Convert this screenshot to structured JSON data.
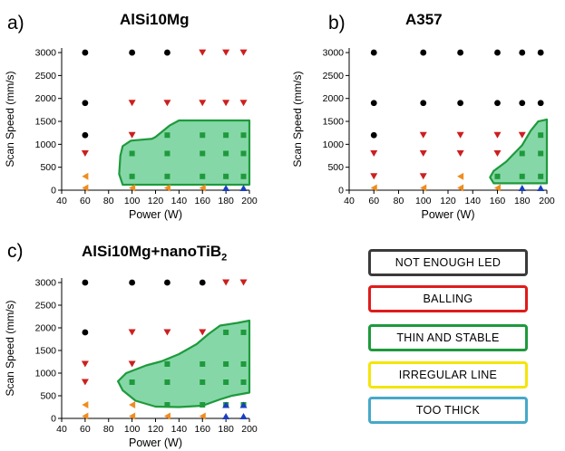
{
  "colors": {
    "not_enough_led": "#000000",
    "balling": "#cc1f1f",
    "thin_and_stable": "#1e9a3c",
    "thin_fill": "#5ec98a",
    "irregular_line": "#f08c1e",
    "too_thick": "#1a3fbf"
  },
  "chart_data": [
    {
      "type": "scatter",
      "panel_label": "a)",
      "title": "AlSi10Mg",
      "xlabel": "Power (W)",
      "ylabel": "Scan Speed (mm/s)",
      "xlim": [
        40,
        200
      ],
      "ylim": [
        0,
        3100
      ],
      "xticks": [
        40,
        60,
        80,
        100,
        120,
        140,
        160,
        180,
        200
      ],
      "yticks": [
        0,
        500,
        1000,
        1500,
        2000,
        2500,
        3000
      ],
      "series": [
        {
          "category": "not_enough_led",
          "marker": "circle",
          "points": [
            [
              60,
              3000
            ],
            [
              100,
              3000
            ],
            [
              130,
              3000
            ],
            [
              60,
              1900
            ],
            [
              60,
              1200
            ]
          ]
        },
        {
          "category": "balling",
          "marker": "triangle-down",
          "points": [
            [
              160,
              3000
            ],
            [
              180,
              3000
            ],
            [
              195,
              3000
            ],
            [
              100,
              1900
            ],
            [
              130,
              1900
            ],
            [
              160,
              1900
            ],
            [
              180,
              1900
            ],
            [
              195,
              1900
            ],
            [
              100,
              1200
            ],
            [
              60,
              800
            ]
          ]
        },
        {
          "category": "thin_and_stable",
          "marker": "square",
          "points": [
            [
              130,
              1200
            ],
            [
              160,
              1200
            ],
            [
              180,
              1200
            ],
            [
              195,
              1200
            ],
            [
              100,
              800
            ],
            [
              130,
              800
            ],
            [
              160,
              800
            ],
            [
              180,
              800
            ],
            [
              195,
              800
            ],
            [
              100,
              300
            ],
            [
              130,
              300
            ],
            [
              160,
              300
            ],
            [
              180,
              300
            ],
            [
              195,
              300
            ]
          ]
        },
        {
          "category": "irregular_line",
          "marker": "triangle-left",
          "points": [
            [
              60,
              300
            ],
            [
              60,
              50
            ],
            [
              100,
              50
            ],
            [
              130,
              50
            ],
            [
              160,
              50
            ]
          ]
        },
        {
          "category": "too_thick",
          "marker": "triangle-up",
          "points": [
            [
              180,
              50
            ],
            [
              195,
              50
            ]
          ]
        }
      ],
      "region": [
        [
          92,
          960
        ],
        [
          99,
          1080
        ],
        [
          117,
          1120
        ],
        [
          120,
          1160
        ],
        [
          132,
          1410
        ],
        [
          140,
          1520
        ],
        [
          200,
          1520
        ],
        [
          200,
          120
        ],
        [
          92,
          120
        ],
        [
          89,
          350
        ],
        [
          90,
          750
        ]
      ]
    },
    {
      "type": "scatter",
      "panel_label": "b)",
      "title": "A357",
      "xlabel": "Power (W)",
      "ylabel": "Scan Speed (mm/s)",
      "xlim": [
        40,
        200
      ],
      "ylim": [
        0,
        3100
      ],
      "xticks": [
        40,
        60,
        80,
        100,
        120,
        140,
        160,
        180,
        200
      ],
      "yticks": [
        0,
        500,
        1000,
        1500,
        2000,
        2500,
        3000
      ],
      "series": [
        {
          "category": "not_enough_led",
          "marker": "circle",
          "points": [
            [
              60,
              3000
            ],
            [
              100,
              3000
            ],
            [
              130,
              3000
            ],
            [
              160,
              3000
            ],
            [
              180,
              3000
            ],
            [
              195,
              3000
            ],
            [
              60,
              1900
            ],
            [
              100,
              1900
            ],
            [
              130,
              1900
            ],
            [
              160,
              1900
            ],
            [
              180,
              1900
            ],
            [
              195,
              1900
            ],
            [
              60,
              1200
            ]
          ]
        },
        {
          "category": "balling",
          "marker": "triangle-down",
          "points": [
            [
              100,
              1200
            ],
            [
              130,
              1200
            ],
            [
              160,
              1200
            ],
            [
              180,
              1200
            ],
            [
              60,
              800
            ],
            [
              100,
              800
            ],
            [
              130,
              800
            ],
            [
              160,
              800
            ],
            [
              60,
              300
            ],
            [
              100,
              300
            ]
          ]
        },
        {
          "category": "thin_and_stable",
          "marker": "square",
          "points": [
            [
              195,
              1200
            ],
            [
              180,
              800
            ],
            [
              195,
              800
            ],
            [
              160,
              300
            ],
            [
              180,
              300
            ],
            [
              195,
              300
            ]
          ]
        },
        {
          "category": "irregular_line",
          "marker": "triangle-left",
          "points": [
            [
              130,
              300
            ],
            [
              60,
              50
            ],
            [
              100,
              50
            ],
            [
              130,
              50
            ],
            [
              160,
              50
            ]
          ]
        },
        {
          "category": "too_thick",
          "marker": "triangle-up",
          "points": [
            [
              180,
              50
            ],
            [
              195,
              50
            ]
          ]
        }
      ],
      "region": [
        [
          157,
          420
        ],
        [
          167,
          620
        ],
        [
          180,
          980
        ],
        [
          187,
          1300
        ],
        [
          193,
          1500
        ],
        [
          200,
          1540
        ],
        [
          200,
          150
        ],
        [
          157,
          150
        ],
        [
          154,
          280
        ]
      ]
    },
    {
      "type": "scatter",
      "panel_label": "c)",
      "title": "AlSi10Mg+nanoTiB",
      "title_subscript": "2",
      "xlabel": "Power (W)",
      "ylabel": "Scan Speed (mm/s)",
      "xlim": [
        40,
        200
      ],
      "ylim": [
        0,
        3100
      ],
      "xticks": [
        40,
        60,
        80,
        100,
        120,
        140,
        160,
        180,
        200
      ],
      "yticks": [
        0,
        500,
        1000,
        1500,
        2000,
        2500,
        3000
      ],
      "series": [
        {
          "category": "not_enough_led",
          "marker": "circle",
          "points": [
            [
              60,
              3000
            ],
            [
              100,
              3000
            ],
            [
              130,
              3000
            ],
            [
              160,
              3000
            ],
            [
              60,
              1900
            ]
          ]
        },
        {
          "category": "balling",
          "marker": "triangle-down",
          "points": [
            [
              180,
              3000
            ],
            [
              195,
              3000
            ],
            [
              100,
              1900
            ],
            [
              130,
              1900
            ],
            [
              160,
              1900
            ],
            [
              60,
              1200
            ],
            [
              100,
              1200
            ],
            [
              60,
              800
            ]
          ]
        },
        {
          "category": "thin_and_stable",
          "marker": "square",
          "points": [
            [
              180,
              1900
            ],
            [
              195,
              1900
            ],
            [
              130,
              1200
            ],
            [
              160,
              1200
            ],
            [
              180,
              1200
            ],
            [
              195,
              1200
            ],
            [
              100,
              800
            ],
            [
              130,
              800
            ],
            [
              160,
              800
            ],
            [
              180,
              800
            ],
            [
              195,
              800
            ],
            [
              130,
              300
            ],
            [
              160,
              300
            ],
            [
              180,
              300
            ],
            [
              195,
              300
            ]
          ]
        },
        {
          "category": "irregular_line",
          "marker": "triangle-left",
          "points": [
            [
              60,
              300
            ],
            [
              100,
              300
            ],
            [
              60,
              50
            ],
            [
              100,
              50
            ],
            [
              130,
              50
            ],
            [
              160,
              50
            ]
          ]
        },
        {
          "category": "too_thick",
          "marker": "triangle-up",
          "points": [
            [
              180,
              300
            ],
            [
              195,
              300
            ],
            [
              180,
              50
            ],
            [
              195,
              50
            ]
          ]
        }
      ],
      "region": [
        [
          88,
          820
        ],
        [
          95,
          1000
        ],
        [
          112,
          1170
        ],
        [
          125,
          1260
        ],
        [
          140,
          1420
        ],
        [
          155,
          1640
        ],
        [
          165,
          1860
        ],
        [
          175,
          2050
        ],
        [
          190,
          2110
        ],
        [
          200,
          2160
        ],
        [
          200,
          570
        ],
        [
          185,
          500
        ],
        [
          175,
          420
        ],
        [
          160,
          280
        ],
        [
          140,
          250
        ],
        [
          120,
          260
        ],
        [
          103,
          390
        ],
        [
          92,
          620
        ]
      ]
    }
  ],
  "legend": [
    {
      "label": "NOT ENOUGH LED",
      "color": "#3a3a3a"
    },
    {
      "label": "BALLING",
      "color": "#e01b1b"
    },
    {
      "label": "THIN AND STABLE",
      "color": "#1e9a3c"
    },
    {
      "label": "IRREGULAR LINE",
      "color": "#f5e40a"
    },
    {
      "label": "TOO THICK",
      "color": "#46a8c9"
    }
  ]
}
